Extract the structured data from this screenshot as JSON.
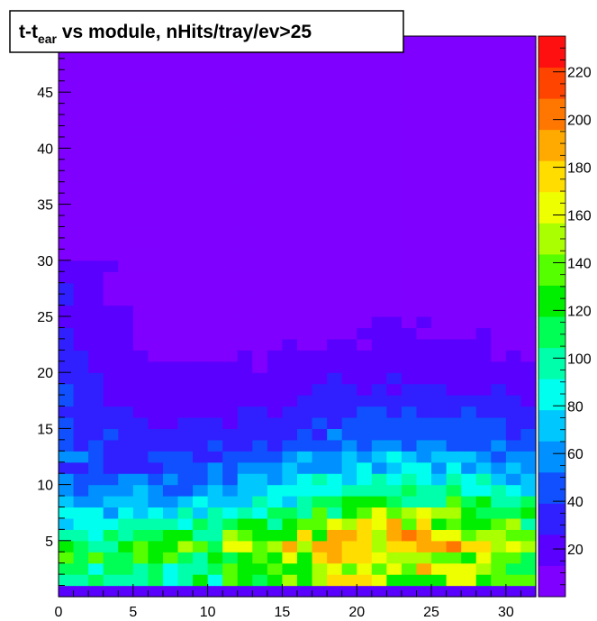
{
  "chart_data": {
    "type": "heatmap",
    "title": {
      "main": "t-t",
      "subscript": "ear",
      "rest": " vs module, nHits/tray/ev>25"
    },
    "xlabel": "",
    "ylabel": "",
    "x_range": [
      0,
      32
    ],
    "y_range": [
      0,
      50
    ],
    "x_bins": 32,
    "y_bins": 50,
    "x_tick_labels": [
      0,
      5,
      10,
      15,
      20,
      25,
      30
    ],
    "y_tick_labels": [
      5,
      10,
      15,
      20,
      25,
      30,
      35,
      40,
      45
    ],
    "z_range": [
      0,
      235
    ],
    "z_tick_labels": [
      20,
      40,
      60,
      80,
      100,
      120,
      140,
      160,
      180,
      200,
      220
    ],
    "z_tick_display": [
      "20",
      "40",
      "60",
      "80",
      "100",
      "120",
      "140",
      "160",
      "180",
      "200",
      "220"
    ],
    "colormap": [
      "#7f00ff",
      "#5a00ff",
      "#3020ff",
      "#1050ff",
      "#0090ff",
      "#00c8ff",
      "#00ffee",
      "#00ffaa",
      "#00ff55",
      "#00ee00",
      "#55ff00",
      "#aaff00",
      "#eeff00",
      "#ffdd00",
      "#ffaa00",
      "#ff7700",
      "#ff4400",
      "#ff1010"
    ],
    "description_of_trend": "Counts highest at low t-t_ear (y < 10) for modules 10-30, decreasing toward larger y; near zero above y~25 except low-module edge"
  }
}
